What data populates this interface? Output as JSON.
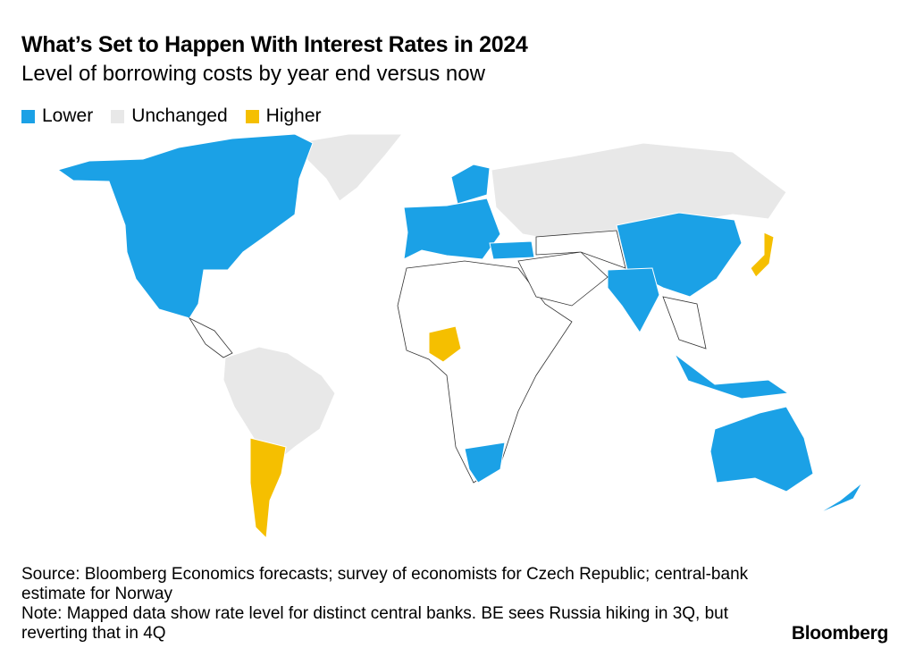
{
  "title": "What’s Set to Happen With Interest Rates in 2024",
  "subtitle": "Level of borrowing costs by year end versus now",
  "legend": [
    {
      "label": "Lower",
      "color": "#1ba1e6"
    },
    {
      "label": "Unchanged",
      "color": "#e8e8e8"
    },
    {
      "label": "Higher",
      "color": "#f5bf00"
    }
  ],
  "map": {
    "lower": [
      "Canada",
      "United States",
      "Mexico",
      "Euro area",
      "Scandinavia",
      "Turkey",
      "India",
      "China",
      "South Korea",
      "Indonesia",
      "Philippines",
      "Australia",
      "New Zealand",
      "South Africa"
    ],
    "unchanged": [
      "Russia",
      "Greenland",
      "Brazil"
    ],
    "higher": [
      "Japan",
      "Nigeria",
      "Argentina"
    ]
  },
  "footer": {
    "source": "Source: Bloomberg Economics forecasts; survey of economists for Czech Republic; central-bank estimate for Norway",
    "note": "Note: Mapped data show rate level for distinct central banks. BE sees Russia hiking in 3Q, but reverting that in 4Q"
  },
  "logo": "Bloomberg"
}
